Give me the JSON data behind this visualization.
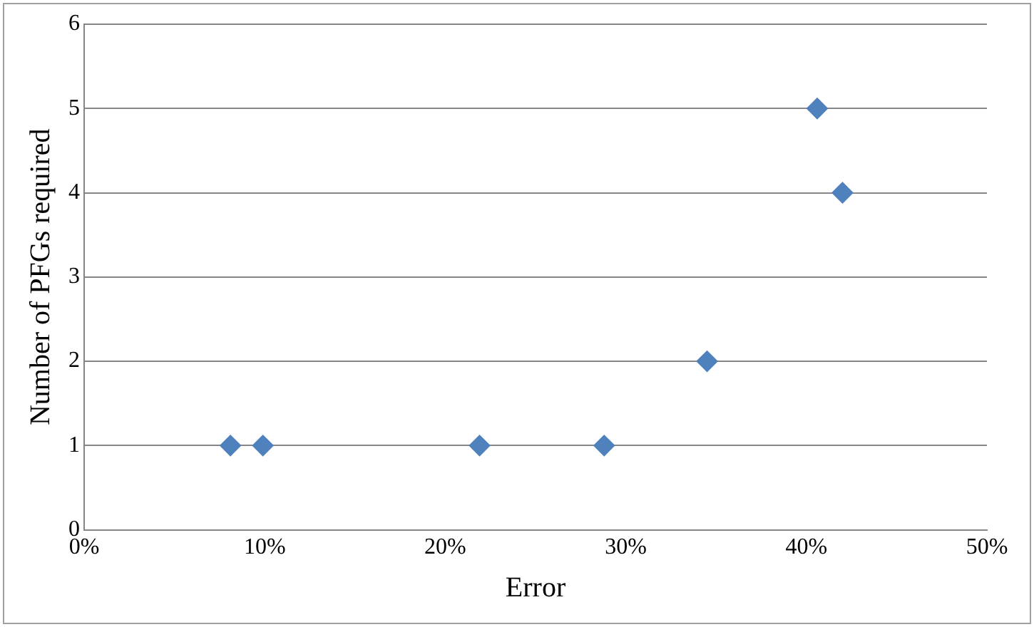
{
  "chart_data": {
    "type": "scatter",
    "xlabel": "Error",
    "ylabel": "Number of PFGs required",
    "x": [
      8.1,
      9.9,
      21.9,
      28.8,
      34.5,
      40.6,
      42.0
    ],
    "series": [
      {
        "color": "#4f81bd",
        "values": [
          1,
          1,
          1,
          1,
          2,
          5,
          4
        ]
      }
    ],
    "xlim": [
      0,
      50
    ],
    "xticks": [
      {
        "value": 0,
        "label": "0%"
      },
      {
        "value": 10,
        "label": "10%"
      },
      {
        "value": 20,
        "label": "20%"
      },
      {
        "value": 30,
        "label": "30%"
      },
      {
        "value": 40,
        "label": "40%"
      },
      {
        "value": 50,
        "label": "50%"
      }
    ],
    "ylim": [
      0,
      6
    ],
    "yticks": [
      0,
      1,
      2,
      3,
      4,
      5,
      6
    ],
    "grid": "y",
    "marker": "diamond",
    "legend": false
  }
}
